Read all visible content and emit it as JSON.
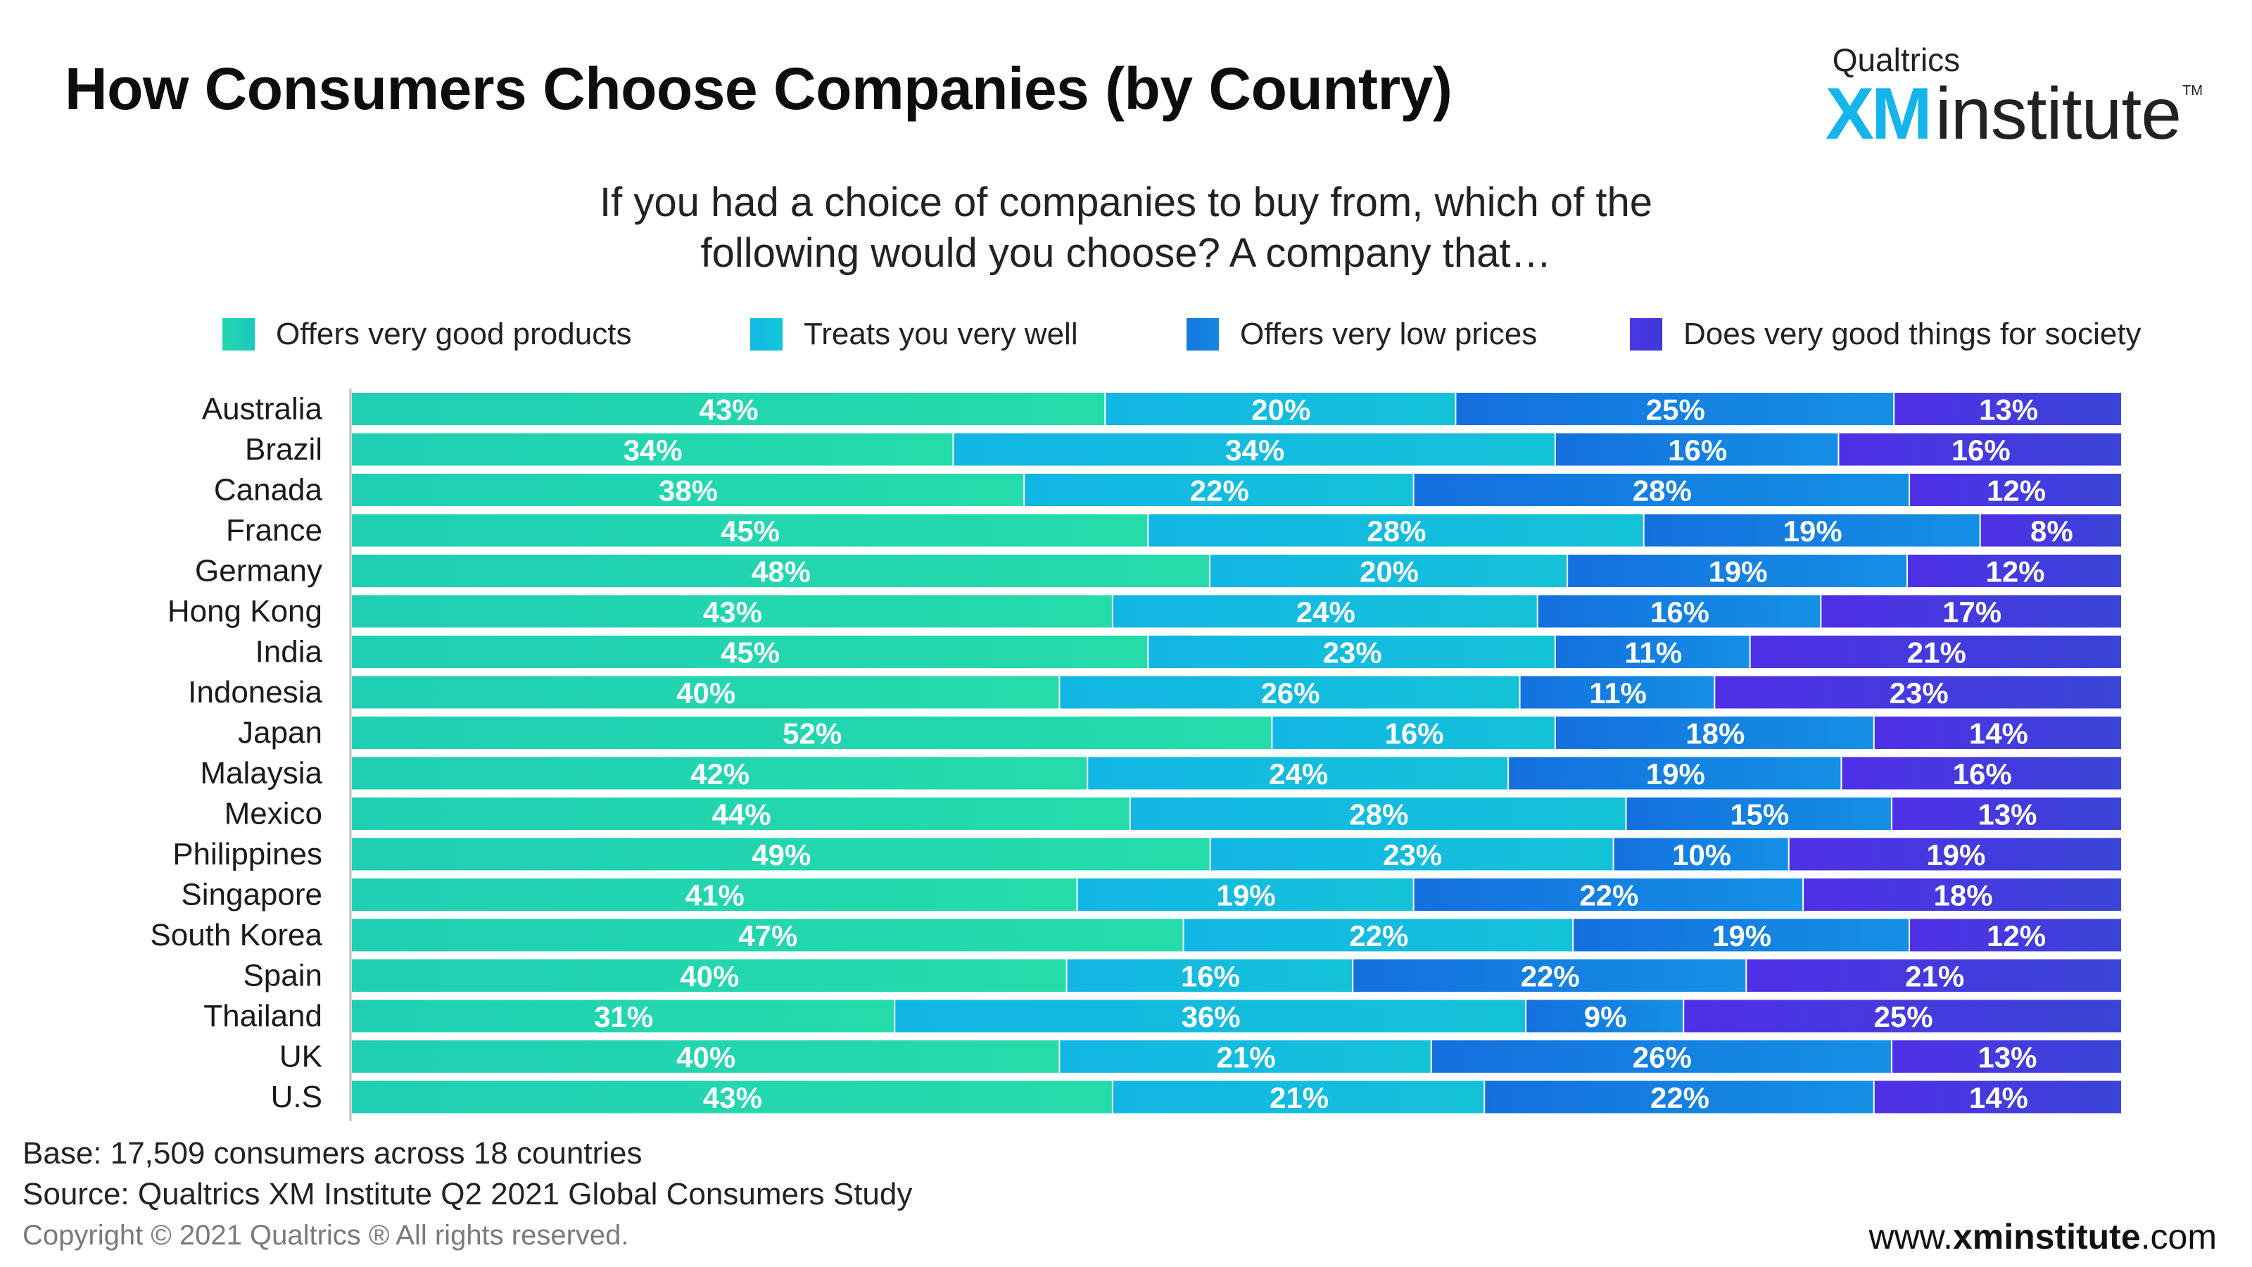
{
  "header": {
    "title": "How Consumers Choose Companies (by Country)",
    "question_line1": "If you had a choice of companies to buy from, which of the",
    "question_line2": "following would you choose? A company that…"
  },
  "brand": {
    "top": "Qualtrics",
    "xm": "XM",
    "institute": "institute",
    "tm": "TM"
  },
  "footer": {
    "base": "Base: 17,509 consumers across 18 countries",
    "source": "Source: Qualtrics XM Institute Q2 2021 Global Consumers Study",
    "copyright": "Copyright © 2021 Qualtrics ® All rights reserved.",
    "website_prefix": "www.",
    "website_bold": "xminstitute",
    "website_suffix": ".com"
  },
  "colors": {
    "offers_products": "#22d8ae",
    "treats_well": "#14b9e2",
    "low_prices": "#1478e0",
    "good_society": "#4a36e4"
  },
  "chart_data": {
    "type": "bar",
    "orientation": "horizontal",
    "stacked": true,
    "categories": [
      "Australia",
      "Brazil",
      "Canada",
      "France",
      "Germany",
      "Hong Kong",
      "India",
      "Indonesia",
      "Japan",
      "Malaysia",
      "Mexico",
      "Philippines",
      "Singapore",
      "South Korea",
      "Spain",
      "Thailand",
      "UK",
      "U.S"
    ],
    "series": [
      {
        "name": "Offers very good  products",
        "color": "#22d8ae",
        "values": [
          43,
          34,
          38,
          45,
          48,
          43,
          45,
          40,
          52,
          42,
          44,
          49,
          41,
          47,
          40,
          31,
          40,
          43
        ]
      },
      {
        "name": "Treats you very well",
        "color": "#14b9e2",
        "values": [
          20,
          34,
          22,
          28,
          20,
          24,
          23,
          26,
          16,
          24,
          28,
          23,
          19,
          22,
          16,
          36,
          21,
          21
        ]
      },
      {
        "name": "Offers very low prices",
        "color": "#1478e0",
        "values": [
          25,
          16,
          28,
          19,
          19,
          16,
          11,
          11,
          18,
          19,
          15,
          10,
          22,
          19,
          22,
          9,
          26,
          22
        ]
      },
      {
        "name": "Does very good things for society",
        "color": "#4a36e4",
        "values": [
          13,
          16,
          12,
          8,
          12,
          17,
          21,
          23,
          14,
          16,
          13,
          19,
          18,
          12,
          21,
          25,
          13,
          14
        ]
      }
    ],
    "data_label_suffix": "%",
    "legend_position": "top",
    "grid": false
  }
}
